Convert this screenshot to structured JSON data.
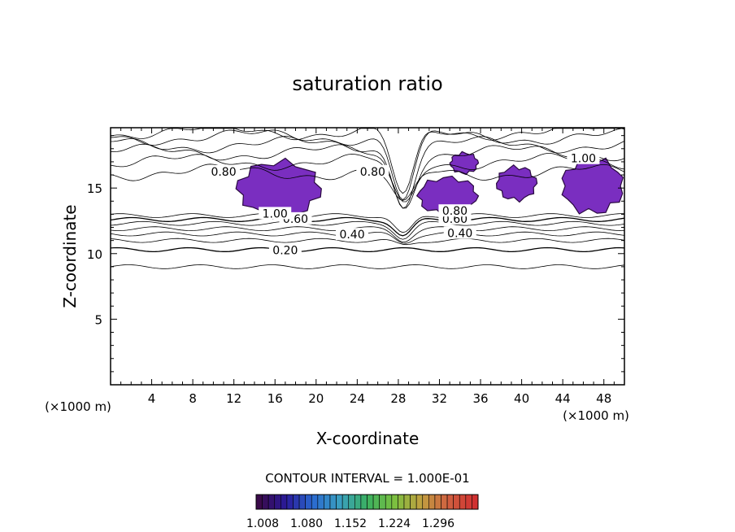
{
  "chart_data": {
    "type": "contour",
    "title": "saturation ratio",
    "xlabel": "X-coordinate",
    "ylabel": "Z-coordinate",
    "x_unit_label": "(×1000 m)",
    "z_unit_label": "(×1000 m)",
    "xlim": [
      0,
      50
    ],
    "ylim": [
      0,
      19.6
    ],
    "xticks": [
      4,
      8,
      12,
      16,
      20,
      24,
      28,
      32,
      36,
      40,
      44,
      48
    ],
    "yticks": [
      5,
      10,
      15
    ],
    "contour_interval_label": "CONTOUR INTERVAL = 1.000E-01",
    "contour_labels": [
      {
        "text": "0.20",
        "x": 17,
        "z": 10.2
      },
      {
        "text": "0.40",
        "x": 23.5,
        "z": 11.4
      },
      {
        "text": "0.40",
        "x": 34,
        "z": 11.5
      },
      {
        "text": "0.60",
        "x": 18,
        "z": 12.6
      },
      {
        "text": "0.60",
        "x": 33.5,
        "z": 12.6
      },
      {
        "text": "0.80",
        "x": 11,
        "z": 16.2
      },
      {
        "text": "0.80",
        "x": 33.5,
        "z": 13.2
      },
      {
        "text": "0.80",
        "x": 25.5,
        "z": 16.2
      },
      {
        "text": "1.00",
        "x": 16,
        "z": 13.0
      },
      {
        "text": "1.00",
        "x": 46,
        "z": 17.2
      }
    ],
    "supersaturated_regions": [
      {
        "x": [
          12.2,
          20.6
        ],
        "z": [
          12.6,
          17.3
        ]
      },
      {
        "x": [
          29.8,
          35.8
        ],
        "z": [
          12.8,
          16.0
        ]
      },
      {
        "x": [
          33.0,
          35.8
        ],
        "z": [
          16.0,
          17.8
        ]
      },
      {
        "x": [
          37.5,
          41.5
        ],
        "z": [
          13.9,
          16.8
        ]
      },
      {
        "x": [
          43.8,
          50.0
        ],
        "z": [
          12.8,
          17.5
        ]
      }
    ],
    "colorbar": {
      "ticks": [
        "1.008",
        "1.080",
        "1.152",
        "1.224",
        "1.296"
      ],
      "colors": [
        "#3a0a4a",
        "#2a1a9a",
        "#2a6ad0",
        "#3aa0c0",
        "#3ab060",
        "#7ac040",
        "#c0a040",
        "#d06040",
        "#d03030"
      ]
    },
    "fill_color": "#7a2ec0"
  }
}
